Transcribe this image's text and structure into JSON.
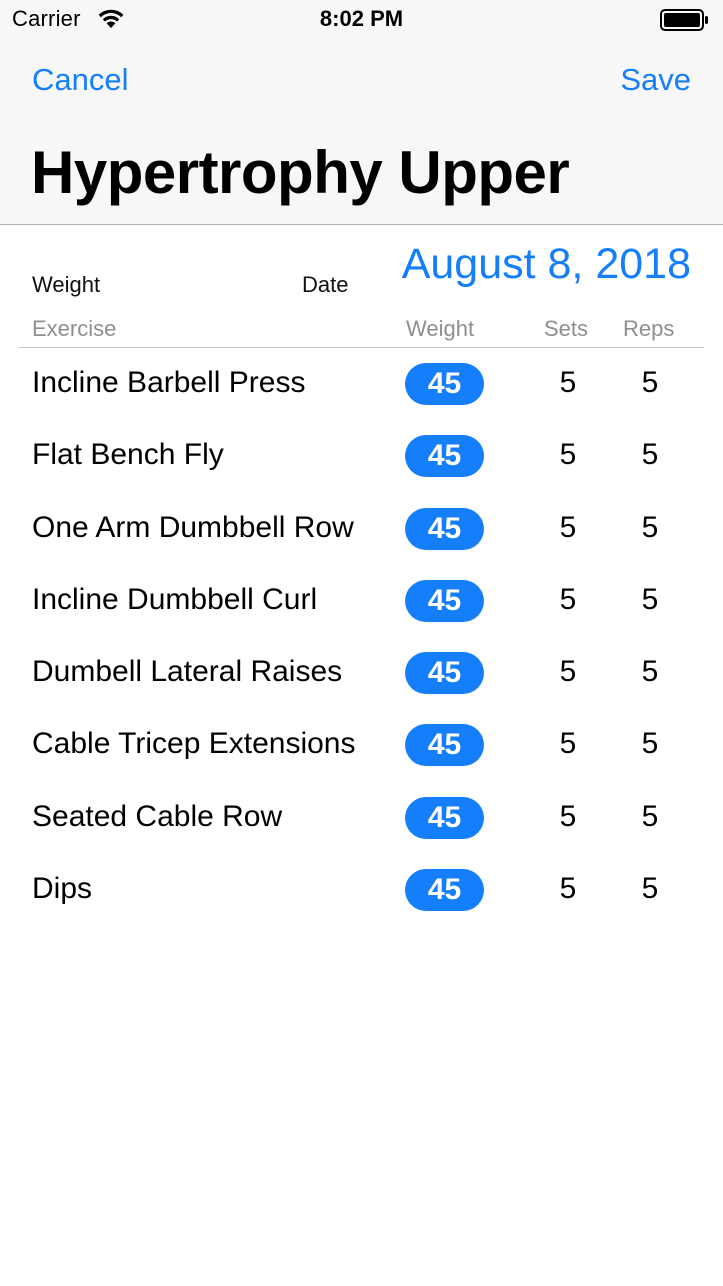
{
  "status_bar": {
    "carrier": "Carrier",
    "time": "8:02 PM",
    "wifi_icon": "wifi-icon",
    "battery_icon": "battery-icon"
  },
  "nav": {
    "cancel_label": "Cancel",
    "save_label": "Save",
    "title": "Hypertrophy Upper"
  },
  "info": {
    "weight_label": "Weight",
    "date_label": "Date",
    "date_value": "August 8, 2018"
  },
  "columns": {
    "exercise": "Exercise",
    "weight": "Weight",
    "sets": "Sets",
    "reps": "Reps"
  },
  "exercises": [
    {
      "name": "Incline Barbell Press",
      "weight": "45",
      "sets": "5",
      "reps": "5"
    },
    {
      "name": "Flat Bench Fly",
      "weight": "45",
      "sets": "5",
      "reps": "5"
    },
    {
      "name": "One Arm Dumbbell Row",
      "weight": "45",
      "sets": "5",
      "reps": "5"
    },
    {
      "name": "Incline Dumbbell Curl",
      "weight": "45",
      "sets": "5",
      "reps": "5"
    },
    {
      "name": "Dumbell Lateral Raises",
      "weight": "45",
      "sets": "5",
      "reps": "5"
    },
    {
      "name": "Cable Tricep Extensions",
      "weight": "45",
      "sets": "5",
      "reps": "5"
    },
    {
      "name": "Seated Cable Row",
      "weight": "45",
      "sets": "5",
      "reps": "5"
    },
    {
      "name": "Dips",
      "weight": "45",
      "sets": "5",
      "reps": "5"
    }
  ],
  "colors": {
    "accent": "#157efb",
    "nav_background": "#f7f7f7",
    "secondary_text": "#8e8e93"
  }
}
